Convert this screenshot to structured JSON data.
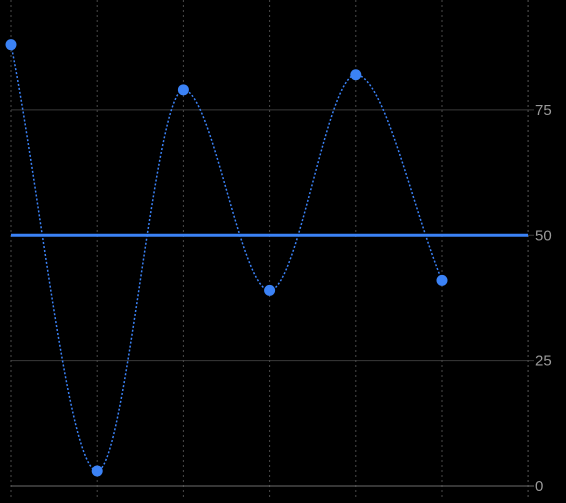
{
  "chart_data": {
    "type": "line",
    "title": "",
    "xlabel": "",
    "ylabel": "",
    "x": [
      0,
      1,
      2,
      3,
      4,
      5
    ],
    "series": [
      {
        "values": [
          88,
          3,
          79,
          39,
          82,
          41
        ],
        "interpolation": "smooth",
        "line_style": "dotted"
      }
    ],
    "xlim": [
      0,
      6
    ],
    "ylim": [
      0,
      95
    ],
    "x_ticks": [
      0,
      2,
      4
    ],
    "y_ticks": [
      0,
      25,
      50,
      75
    ],
    "y_axis_position": "right",
    "reference_line": {
      "value": 50
    },
    "grid": true,
    "legend": "none",
    "colors": {
      "background": "#000000",
      "series": "#3b82f6",
      "reference_line": "#3b82f6",
      "grid": "#3a3a3a",
      "vertical_grid": "#4a4a4a",
      "axis_line": "#6b6b6b",
      "tick_label": "#9a9a9a"
    }
  }
}
